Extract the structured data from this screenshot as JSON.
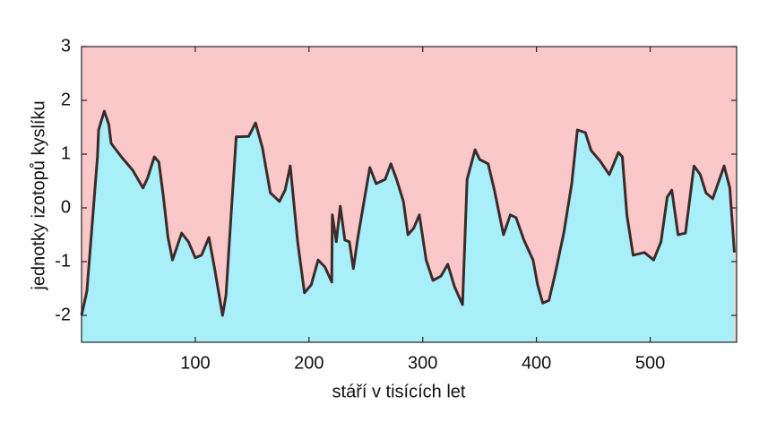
{
  "chart_data": {
    "type": "area",
    "xlabel": "stáří v tisících let",
    "ylabel": "jednotky izotopů kyslíku",
    "x": [
      0,
      4.7,
      10,
      14,
      15,
      20,
      24,
      26,
      35,
      45,
      54,
      58,
      64,
      68,
      72,
      76,
      80,
      88,
      94,
      100,
      105.5,
      112,
      117,
      124,
      127,
      131.5,
      136,
      147,
      153,
      159,
      166,
      174,
      179,
      183.5,
      190,
      196,
      202,
      208,
      214,
      220,
      220.5,
      224,
      227.5,
      231.5,
      235.5,
      239,
      243,
      249,
      253.5,
      259,
      267,
      272,
      277,
      283,
      287,
      292,
      297,
      303,
      309,
      316,
      322,
      328,
      335,
      339,
      346,
      350,
      357.5,
      363,
      371,
      377,
      382,
      389,
      397,
      401,
      405.5,
      411,
      416.5,
      424,
      431,
      436,
      443,
      448,
      456,
      464,
      468,
      472,
      475.5,
      479.5,
      485,
      495,
      503,
      509.5,
      515,
      519,
      524.5,
      531,
      538.5,
      544,
      549,
      555,
      565,
      570,
      574
    ],
    "values": [
      -2.0,
      -1.55,
      -0.13,
      0.95,
      1.45,
      1.8,
      1.55,
      1.2,
      0.95,
      0.7,
      0.37,
      0.55,
      0.95,
      0.85,
      0.2,
      -0.55,
      -0.97,
      -0.47,
      -0.63,
      -0.93,
      -0.88,
      -0.55,
      -1.13,
      -2.0,
      -1.63,
      -0.13,
      1.32,
      1.33,
      1.58,
      1.12,
      0.28,
      0.12,
      0.33,
      0.78,
      -0.63,
      -1.58,
      -1.43,
      -0.97,
      -1.1,
      -1.38,
      -0.13,
      -0.63,
      0.03,
      -0.6,
      -0.63,
      -1.13,
      -0.55,
      0.2,
      0.75,
      0.45,
      0.53,
      0.82,
      0.53,
      0.12,
      -0.5,
      -0.38,
      -0.13,
      -0.97,
      -1.35,
      -1.27,
      -1.05,
      -1.47,
      -1.8,
      0.53,
      1.08,
      0.9,
      0.82,
      0.33,
      -0.5,
      -0.13,
      -0.18,
      -0.6,
      -0.97,
      -1.43,
      -1.77,
      -1.72,
      -1.22,
      -0.47,
      0.45,
      1.45,
      1.4,
      1.07,
      0.87,
      0.62,
      0.82,
      1.03,
      0.95,
      -0.13,
      -0.88,
      -0.83,
      -0.97,
      -0.63,
      0.2,
      0.33,
      -0.5,
      -0.47,
      0.78,
      0.62,
      0.28,
      0.17,
      0.78,
      0.37,
      -0.83
    ],
    "color": "#a9eff9",
    "line_color": "#3b2b2b",
    "background_color": "#fbc8c9",
    "xlim": [
      0,
      576
    ],
    "ylim": [
      -2.5,
      3
    ],
    "xticks": [
      100,
      200,
      300,
      400,
      500
    ],
    "yticks": [
      -2,
      -1,
      0,
      1,
      2,
      3
    ]
  }
}
